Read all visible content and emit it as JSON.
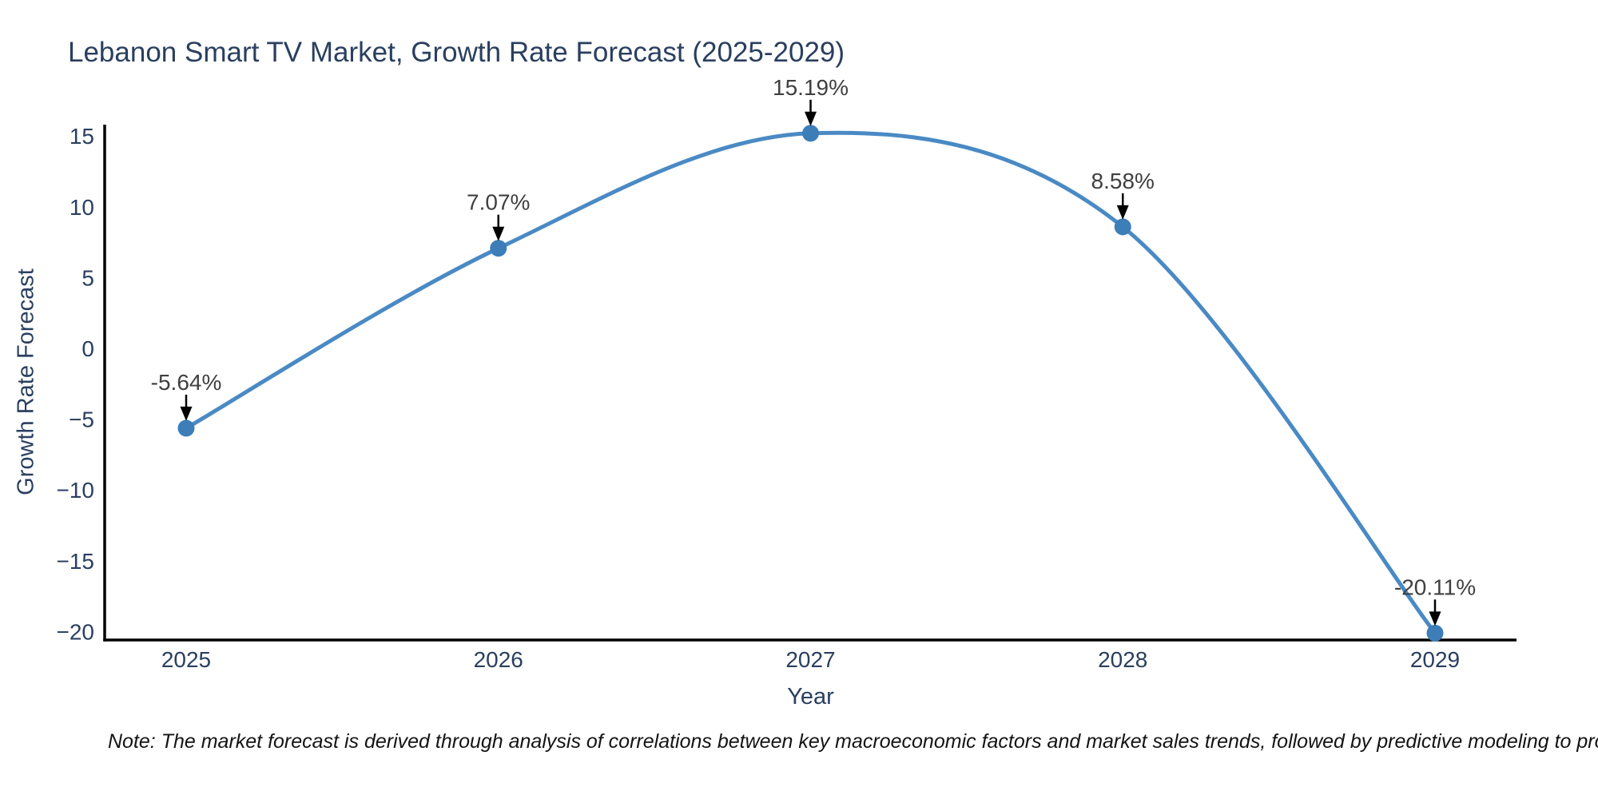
{
  "note": "Note: The market forecast is derived through analysis of correlations between key macroeconomic factors and market sales trends, followed by predictive modeling to project future sales",
  "chart_data": {
    "type": "line",
    "line_shape": "spline",
    "title": "Lebanon Smart TV Market, Growth Rate Forecast (2025-2029)",
    "xlabel": "Year",
    "ylabel": "Growth Rate Forecast",
    "categories": [
      "2025",
      "2026",
      "2027",
      "2028",
      "2029"
    ],
    "series": [
      {
        "name": "Growth Rate Forecast",
        "values": [
          -5.64,
          7.07,
          15.19,
          8.58,
          -20.11
        ],
        "labels": [
          "-5.64%",
          "7.07%",
          "15.19%",
          "8.58%",
          "-20.11%"
        ]
      }
    ],
    "yticks": [
      15,
      10,
      5,
      0,
      -5,
      -10,
      -15,
      -20
    ],
    "ylim": [
      -20.6,
      15.8
    ],
    "grid": false,
    "legend": "none",
    "annotation_style": "black arrow pointing down to each marker",
    "colors": {
      "line": "#4a8ac4",
      "marker": "#3d7eb8",
      "axis": "#000000",
      "text": "#2a3f5f",
      "annotation_text": "#404040",
      "background": "#ffffff"
    }
  }
}
